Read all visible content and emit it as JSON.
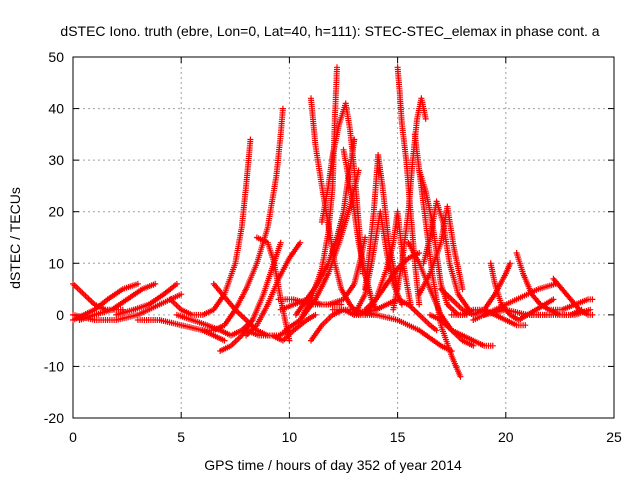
{
  "chart_data": {
    "type": "scatter",
    "title": "dSTEC Iono. truth (ebre, Lon=0, Lat=40, h=111): STEC-STEC_elemax in phase cont. a",
    "xlabel": "GPS time / hours of day 352 of year 2014",
    "ylabel": "dSTEC  / TECUs",
    "xlim": [
      0,
      25
    ],
    "ylim": [
      -20,
      50
    ],
    "xticks": [
      "0",
      "5",
      "10",
      "15",
      "20",
      "25"
    ],
    "yticks": [
      "-20",
      "-10",
      "0",
      "10",
      "20",
      "30",
      "40",
      "50"
    ],
    "grid": true,
    "legend": "none",
    "marker": "+",
    "color": "#ff0000",
    "series": [
      {
        "x": [
          0.0,
          0.5,
          1.0,
          1.5,
          2.0,
          2.3
        ],
        "y": [
          6,
          4,
          2,
          1,
          1,
          1
        ]
      },
      {
        "x": [
          0.0,
          0.5,
          1.0,
          1.6,
          2.3,
          3.0
        ],
        "y": [
          -1,
          0,
          1,
          3,
          5,
          6
        ]
      },
      {
        "x": [
          0.3,
          1.0,
          1.8,
          2.5,
          3.2,
          3.8
        ],
        "y": [
          -1,
          0,
          1,
          3,
          5,
          6
        ]
      },
      {
        "x": [
          2.0,
          2.8,
          3.5,
          4.2,
          4.8
        ],
        "y": [
          0,
          1,
          2,
          4,
          6
        ]
      },
      {
        "x": [
          0.0,
          1.0,
          2.0,
          3.0,
          4.0,
          5.0
        ],
        "y": [
          0,
          -1,
          -1,
          0,
          2,
          4
        ]
      },
      {
        "x": [
          4.5,
          5.0,
          5.5,
          6.0,
          6.5,
          7.0,
          7.5,
          7.8,
          8.0,
          8.2
        ],
        "y": [
          3,
          1,
          0,
          0,
          1,
          4,
          10,
          17,
          25,
          34
        ]
      },
      {
        "x": [
          4.8,
          5.5,
          6.2,
          6.8,
          7.3,
          7.8,
          8.3
        ],
        "y": [
          0,
          -1,
          -2,
          -3,
          -4,
          -3,
          -1
        ]
      },
      {
        "x": [
          3.0,
          4.0,
          5.0,
          6.0,
          6.5,
          7.0
        ],
        "y": [
          -1,
          -1,
          -2,
          -3,
          -4,
          -5
        ]
      },
      {
        "x": [
          6.0,
          6.5,
          7.0,
          7.5,
          8.0,
          8.5,
          9.0,
          9.4,
          9.6,
          9.7
        ],
        "y": [
          -3,
          -3,
          -2,
          1,
          5,
          10,
          17,
          27,
          35,
          40
        ]
      },
      {
        "x": [
          6.8,
          7.3,
          7.8,
          8.3,
          8.8,
          9.2,
          9.6
        ],
        "y": [
          -7,
          -6,
          -4,
          -1,
          4,
          9,
          14
        ]
      },
      {
        "x": [
          6.5,
          7.5,
          8.5,
          9.0,
          9.5,
          10.0
        ],
        "y": [
          6,
          1,
          -3,
          -4,
          -4,
          -3
        ]
      },
      {
        "x": [
          8.0,
          8.5,
          9.0,
          9.5,
          10.0,
          10.5
        ],
        "y": [
          -4,
          -2,
          2,
          7,
          11,
          14
        ]
      },
      {
        "x": [
          8.5,
          9.0,
          9.3,
          9.6,
          10.0
        ],
        "y": [
          15,
          14,
          10,
          3,
          -5
        ]
      },
      {
        "x": [
          8.0,
          8.6,
          9.2,
          9.7,
          10.2,
          10.8,
          11.2
        ],
        "y": [
          -3,
          -4,
          -4,
          -5,
          -3,
          -1,
          0
        ]
      },
      {
        "x": [
          9.5,
          10.2,
          11.0,
          11.8,
          12.5,
          13.0,
          13.3,
          13.5
        ],
        "y": [
          3,
          3,
          2,
          2,
          3,
          6,
          11,
          15
        ]
      },
      {
        "x": [
          9.8,
          10.5,
          11.2,
          11.8,
          12.3,
          12.8,
          13.2
        ],
        "y": [
          -3,
          -1,
          3,
          8,
          14,
          21,
          28
        ]
      },
      {
        "x": [
          9.6,
          10.2,
          10.8,
          11.5,
          12.0,
          12.4
        ],
        "y": [
          1,
          2,
          3,
          2,
          2,
          2
        ]
      },
      {
        "x": [
          10.3,
          10.8,
          11.3,
          11.8,
          12.2,
          12.5,
          12.7,
          12.9,
          13.0
        ],
        "y": [
          0,
          3,
          6,
          10,
          15,
          20,
          26,
          31,
          34
        ]
      },
      {
        "x": [
          10.5,
          11.0,
          11.5,
          11.8,
          12.0,
          12.1,
          12.2
        ],
        "y": [
          -1,
          3,
          9,
          16,
          25,
          38,
          48
        ]
      },
      {
        "x": [
          11.0,
          11.2,
          11.5,
          11.7,
          11.9,
          12.1,
          12.4,
          12.8,
          13.2
        ],
        "y": [
          42,
          33,
          25,
          20,
          15,
          10,
          5,
          2,
          0
        ]
      },
      {
        "x": [
          11.5,
          11.8,
          12.0,
          12.3,
          12.6,
          12.8,
          13.0,
          13.2,
          13.4
        ],
        "y": [
          18,
          25,
          31,
          37,
          41,
          36,
          28,
          18,
          8
        ]
      },
      {
        "x": [
          12.5,
          12.8,
          13.0,
          13.2,
          13.5,
          13.8,
          14.0
        ],
        "y": [
          32,
          25,
          20,
          14,
          8,
          3,
          1
        ]
      },
      {
        "x": [
          11.0,
          11.5,
          12.0,
          12.5,
          13.0,
          13.5,
          14.0
        ],
        "y": [
          -5,
          -2,
          0,
          1,
          0,
          0,
          0
        ]
      },
      {
        "x": [
          13.0,
          13.5,
          13.8,
          14.0,
          14.2,
          14.5,
          14.8,
          15.2
        ],
        "y": [
          0,
          4,
          10,
          15,
          20,
          12,
          6,
          2
        ]
      },
      {
        "x": [
          13.5,
          13.7,
          13.9,
          14.1,
          14.3,
          14.6,
          15.0
        ],
        "y": [
          5,
          12,
          20,
          31,
          25,
          14,
          5
        ]
      },
      {
        "x": [
          13.5,
          14.0,
          14.5,
          14.8,
          15.0,
          15.3,
          15.6
        ],
        "y": [
          1,
          3,
          9,
          14,
          20,
          9,
          2
        ]
      },
      {
        "x": [
          13.0,
          14.0,
          14.5,
          15.0,
          15.5,
          16.0,
          16.5,
          16.8
        ],
        "y": [
          0,
          1,
          2,
          3,
          2,
          0,
          -2,
          -3
        ]
      },
      {
        "x": [
          13.5,
          14.0,
          14.5,
          15.0,
          15.5,
          16.0
        ],
        "y": [
          0,
          3,
          6,
          9,
          11,
          12
        ]
      },
      {
        "x": [
          12.0,
          13.0,
          14.0,
          15.0,
          16.0,
          17.0,
          17.5
        ],
        "y": [
          1,
          1,
          0,
          -1,
          -3,
          -6,
          -7
        ]
      },
      {
        "x": [
          15.0,
          15.1,
          15.2,
          15.4,
          15.6,
          15.8,
          16.0
        ],
        "y": [
          48,
          43,
          37,
          30,
          20,
          10,
          2
        ]
      },
      {
        "x": [
          14.8,
          15.2,
          15.5,
          15.7,
          15.9,
          16.1,
          16.3
        ],
        "y": [
          1,
          10,
          20,
          30,
          38,
          42,
          38
        ]
      },
      {
        "x": [
          15.8,
          16.0,
          16.3,
          16.6,
          17.0,
          17.5,
          17.9
        ],
        "y": [
          35,
          28,
          18,
          8,
          -2,
          -8,
          -12
        ]
      },
      {
        "x": [
          16.0,
          16.3,
          16.6,
          16.8,
          17.0,
          17.3,
          17.8,
          18.2
        ],
        "y": [
          28,
          24,
          18,
          12,
          6,
          2,
          0,
          0
        ]
      },
      {
        "x": [
          16.2,
          16.5,
          16.8,
          17.1,
          17.4,
          17.8,
          18.3
        ],
        "y": [
          10,
          15,
          22,
          18,
          10,
          4,
          1
        ]
      },
      {
        "x": [
          15.5,
          16.0,
          16.5,
          17.0,
          17.5,
          18.0,
          18.5
        ],
        "y": [
          14,
          10,
          5,
          0,
          -3,
          -5,
          -6
        ]
      },
      {
        "x": [
          16.5,
          17.0,
          17.5,
          18.0,
          18.5,
          19.0,
          19.4
        ],
        "y": [
          0,
          -1,
          -3,
          -4,
          -5,
          -6,
          -6
        ]
      },
      {
        "x": [
          16.0,
          16.5,
          17.0,
          17.3,
          17.6,
          18.0
        ],
        "y": [
          4,
          8,
          14,
          21,
          13,
          5
        ]
      },
      {
        "x": [
          17.0,
          17.5,
          18.0,
          18.5,
          19.0,
          19.5,
          20.0,
          20.2
        ],
        "y": [
          5,
          3,
          1,
          0,
          1,
          4,
          8,
          10
        ]
      },
      {
        "x": [
          17.5,
          18.0,
          18.5,
          19.0,
          19.5,
          20.0,
          20.5,
          20.9
        ],
        "y": [
          0,
          0,
          1,
          1,
          0,
          -1,
          -2,
          -2
        ]
      },
      {
        "x": [
          19.3,
          19.5,
          19.8,
          20.2,
          20.6,
          21.0,
          21.4,
          21.8,
          22.2
        ],
        "y": [
          10,
          6,
          2,
          0,
          -1,
          0,
          1,
          2,
          3
        ]
      },
      {
        "x": [
          20.5,
          20.8,
          21.2,
          21.6,
          22.0,
          22.5,
          23.0,
          23.5
        ],
        "y": [
          12,
          8,
          4,
          2,
          1,
          0,
          0,
          1
        ]
      },
      {
        "x": [
          18.5,
          19.5,
          20.5,
          21.5,
          22.3
        ],
        "y": [
          -1,
          1,
          3,
          5,
          6
        ]
      },
      {
        "x": [
          22.2,
          22.6,
          23.0,
          23.4,
          23.8,
          24.0
        ],
        "y": [
          7,
          5,
          3,
          1,
          0,
          0
        ]
      },
      {
        "x": [
          21.0,
          21.8,
          22.5,
          23.2,
          23.9
        ],
        "y": [
          0,
          0,
          0,
          0,
          1
        ]
      },
      {
        "x": [
          22.0,
          22.6,
          23.2,
          23.8,
          24.0
        ],
        "y": [
          1,
          1,
          2,
          3,
          3
        ]
      },
      {
        "x": [
          19.0,
          20.0,
          21.0,
          22.0
        ],
        "y": [
          0,
          1,
          0,
          0
        ]
      }
    ]
  }
}
